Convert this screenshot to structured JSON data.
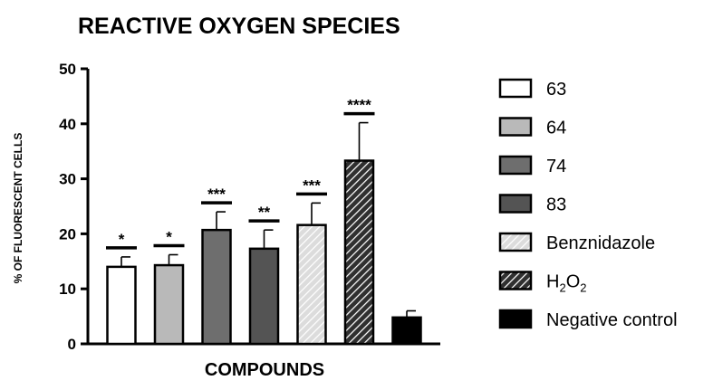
{
  "chart_data": {
    "type": "bar",
    "title": "REACTIVE OXYGEN SPECIES",
    "xlabel": "COMPOUNDS",
    "ylabel": "% OF FLUORESCENT CELLS",
    "ylim": [
      0,
      50
    ],
    "yticks": [
      0,
      10,
      20,
      30,
      40,
      50
    ],
    "grid": false,
    "legend_position": "right",
    "categories": [
      "63",
      "64",
      "74",
      "83",
      "Benznidazole",
      "H2O2",
      "Negative control"
    ],
    "values": [
      14,
      14.3,
      20.7,
      17.3,
      21.6,
      33.3,
      4.8
    ],
    "errors": [
      1.8,
      1.9,
      3.3,
      3.4,
      4.0,
      6.9,
      1.2
    ],
    "significance": [
      "*",
      "*",
      "***",
      "**",
      "***",
      "****",
      ""
    ],
    "fills": [
      "white",
      "light-gray",
      "gray",
      "dark-gray",
      "light-hatch",
      "dark-hatch",
      "black"
    ],
    "colors": {
      "white": "#ffffff",
      "light-gray": "#b9b9b9",
      "gray": "#6e6e6e",
      "dark-gray": "#545454",
      "hatch-light-bg": "#dcdcdc",
      "hatch-dark-bg": "#303030",
      "black": "#000000"
    },
    "legend": [
      {
        "label": "63"
      },
      {
        "label": "64"
      },
      {
        "label": "74"
      },
      {
        "label": "83"
      },
      {
        "label": "Benznidazole"
      },
      {
        "label": "H",
        "sub1": "2",
        "mid": "O",
        "sub2": "2"
      },
      {
        "label": "Negative control"
      }
    ]
  }
}
